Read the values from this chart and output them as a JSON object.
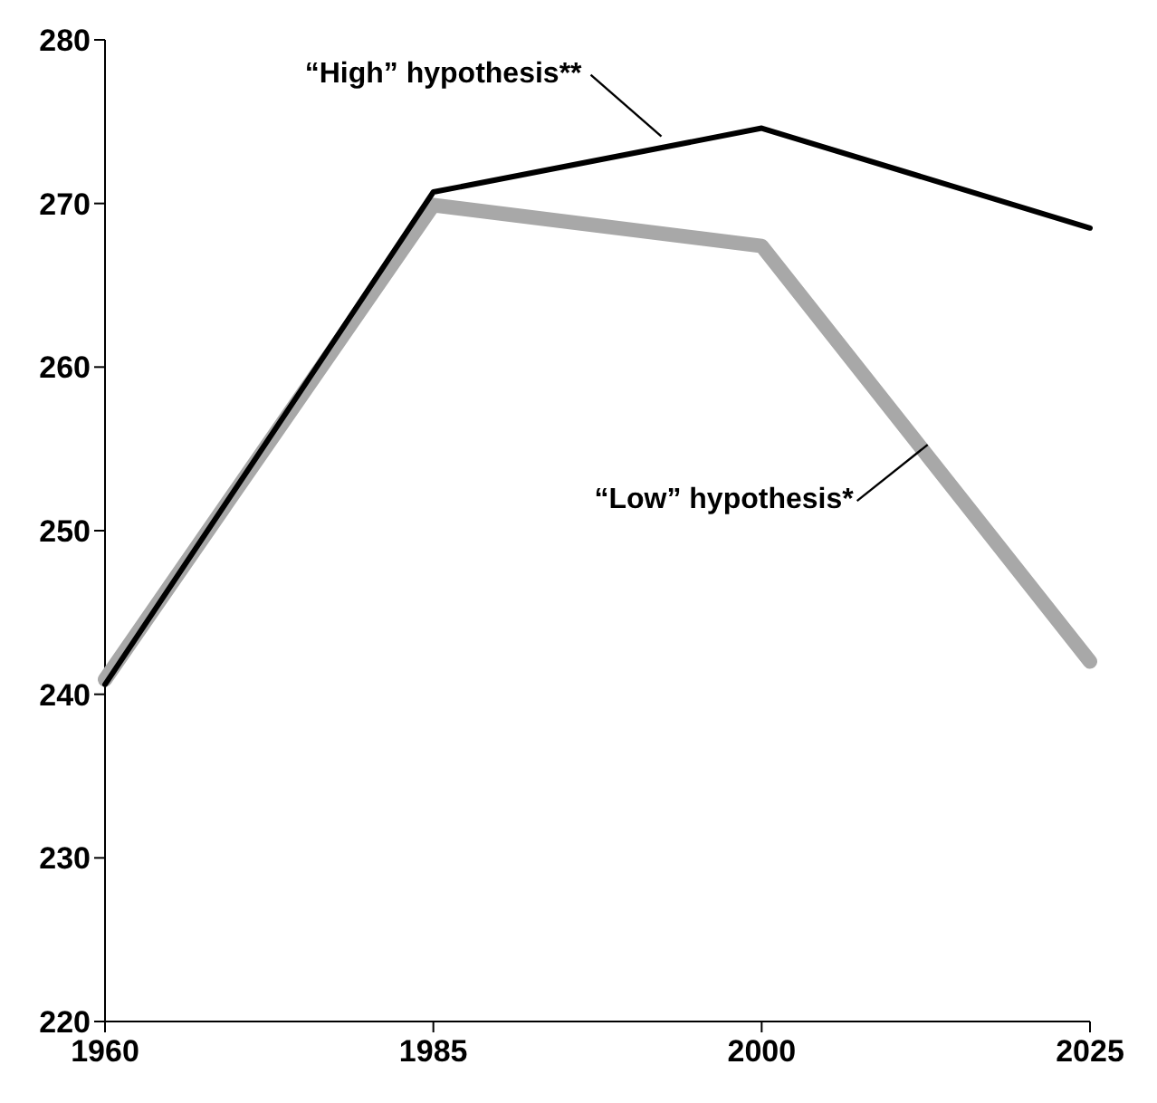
{
  "chart_data": {
    "type": "line",
    "categories": [
      "1960",
      "1985",
      "2000",
      "2025"
    ],
    "series": [
      {
        "name": "“Low” hypothesis*",
        "color": "#a8a8a8",
        "values": [
          240.9,
          269.9,
          267.4,
          242.0
        ]
      },
      {
        "name": "“High” hypothesis**",
        "color": "#000000",
        "values": [
          240.6,
          270.7,
          274.6,
          268.5
        ]
      }
    ],
    "ylim": [
      220,
      280
    ],
    "yticks": [
      220,
      230,
      240,
      250,
      260,
      270,
      280
    ],
    "grid": false,
    "line_style": "solid"
  }
}
